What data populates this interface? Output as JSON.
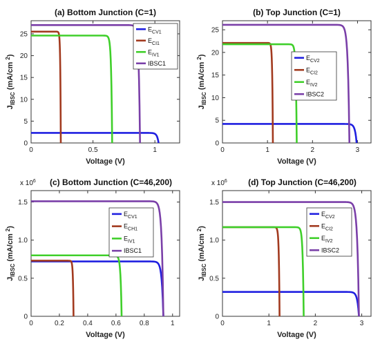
{
  "chart_data": [
    {
      "type": "line",
      "title": "(a) Bottom Junction (C=1)",
      "xlabel": "Voltage (V)",
      "ylabel": "J_IBSC (mA/cm²)",
      "ylabel_parts": {
        "main": "J",
        "sub": "IBSC",
        "units": "(mA/cm",
        "sup": "2",
        "close": ")"
      },
      "xlim": [
        0,
        1.2
      ],
      "ylim": [
        0,
        28
      ],
      "xticks": [
        0,
        0.5,
        1
      ],
      "xtick_labels": [
        "0",
        "0.5",
        "1"
      ],
      "yticks": [
        0,
        5,
        10,
        15,
        20,
        25
      ],
      "ytick_labels": [
        "0",
        "5",
        "10",
        "15",
        "20",
        "25"
      ],
      "legend_position": "top-right",
      "series": [
        {
          "name": "E_CV1",
          "label_main": "E",
          "label_sub": "CV1",
          "color": "#1f1fe0",
          "jsc": 2.3,
          "voc": 1.03
        },
        {
          "name": "E_CI1",
          "label_main": "E",
          "label_sub": "CI1",
          "color": "#a23a1f",
          "jsc": 25.5,
          "voc": 0.24
        },
        {
          "name": "E_IV1",
          "label_main": "E",
          "label_sub": "IV1",
          "color": "#3fcf2a",
          "jsc": 24.6,
          "voc": 0.655
        },
        {
          "name": "IBSC1",
          "label_main": "IBSC1",
          "label_sub": "",
          "color": "#7a3fa8",
          "jsc": 27.0,
          "voc": 0.88
        }
      ]
    },
    {
      "type": "line",
      "title": "(b) Top Junction (C=1)",
      "xlabel": "Voltage (V)",
      "ylabel": "J_IBSC (mA/cm²)",
      "ylabel_parts": {
        "main": "J",
        "sub": "IBSC",
        "units": "(mA/cm",
        "sup": "2",
        "close": ")"
      },
      "xlim": [
        0,
        3.3
      ],
      "ylim": [
        0,
        27
      ],
      "xticks": [
        0,
        1,
        2,
        3
      ],
      "xtick_labels": [
        "0",
        "1",
        "2",
        "3"
      ],
      "yticks": [
        0,
        5,
        10,
        15,
        20,
        25
      ],
      "ytick_labels": [
        "0",
        "5",
        "10",
        "15",
        "20",
        "25"
      ],
      "legend_position": "center-right",
      "series": [
        {
          "name": "E_CV2",
          "label_main": "E",
          "label_sub": "CV2",
          "color": "#1f1fe0",
          "jsc": 4.2,
          "voc": 2.98
        },
        {
          "name": "E_CI2",
          "label_main": "E",
          "label_sub": "CI2",
          "color": "#a23a1f",
          "jsc": 22.1,
          "voc": 1.12
        },
        {
          "name": "E_IV2",
          "label_main": "E",
          "label_sub": "IV2",
          "color": "#3fcf2a",
          "jsc": 21.8,
          "voc": 1.65
        },
        {
          "name": "IBSC2",
          "label_main": "IBSC2",
          "label_sub": "",
          "color": "#7a3fa8",
          "jsc": 26.1,
          "voc": 2.82
        }
      ]
    },
    {
      "type": "line",
      "title": "(c) Bottom Junction (C=46,200)",
      "scale_label": {
        "main": "x 10",
        "sup": "6"
      },
      "xlabel": "Voltage (V)",
      "ylabel": "J_IBSC (mA/cm²)",
      "ylabel_parts": {
        "main": "J",
        "sub": "IBSC",
        "units": "(mA/cm",
        "sup": "2",
        "close": ")"
      },
      "xlim": [
        0,
        1.05
      ],
      "ylim": [
        0,
        1.65
      ],
      "xticks": [
        0,
        0.2,
        0.4,
        0.6,
        0.8,
        1
      ],
      "xtick_labels": [
        "0",
        "0.2",
        "0.4",
        "0.6",
        "0.8",
        "1"
      ],
      "yticks": [
        0,
        0.5,
        1,
        1.5
      ],
      "ytick_labels": [
        "0",
        "0.5",
        "1.0",
        "1.5"
      ],
      "legend_position": "top-right",
      "series": [
        {
          "name": "E_CV1",
          "label_main": "E",
          "label_sub": "CV1",
          "color": "#1f1fe0",
          "jsc": 0.72,
          "voc": 0.935
        },
        {
          "name": "E_CH1",
          "label_main": "E",
          "label_sub": "CH1",
          "color": "#a23a1f",
          "jsc": 0.73,
          "voc": 0.3
        },
        {
          "name": "E_IV1",
          "label_main": "E",
          "label_sub": "IV1",
          "color": "#3fcf2a",
          "jsc": 0.8,
          "voc": 0.64
        },
        {
          "name": "IBSC1",
          "label_main": "IBSC1",
          "label_sub": "",
          "color": "#7a3fa8",
          "jsc": 1.51,
          "voc": 0.935
        }
      ]
    },
    {
      "type": "line",
      "title": "(d) Top Junction (C=46,200)",
      "scale_label": {
        "main": "x 10",
        "sup": "6"
      },
      "xlabel": "Voltage (V)",
      "ylabel": "J_IBSC (mA/cm²)",
      "ylabel_parts": {
        "main": "J",
        "sub": "IBSC",
        "units": "(mA/cm",
        "sup": "2",
        "close": ")"
      },
      "xlim": [
        0,
        3.2
      ],
      "ylim": [
        0,
        1.65
      ],
      "xticks": [
        0,
        1,
        2,
        3
      ],
      "xtick_labels": [
        "0",
        "1",
        "2",
        "3"
      ],
      "yticks": [
        0,
        0.5,
        1,
        1.5
      ],
      "ytick_labels": [
        "0",
        "0.5",
        "1.0",
        "1.5"
      ],
      "legend_position": "top-right",
      "series": [
        {
          "name": "E_CV2",
          "label_main": "E",
          "label_sub": "CV2",
          "color": "#1f1fe0",
          "jsc": 0.32,
          "voc": 2.94
        },
        {
          "name": "E_CI2",
          "label_main": "E",
          "label_sub": "CI2",
          "color": "#a23a1f",
          "jsc": 1.17,
          "voc": 1.23
        },
        {
          "name": "E_IV2",
          "label_main": "E",
          "label_sub": "IV2",
          "color": "#3fcf2a",
          "jsc": 1.17,
          "voc": 1.75
        },
        {
          "name": "IBSC2",
          "label_main": "IBSC2",
          "label_sub": "",
          "color": "#7a3fa8",
          "jsc": 1.5,
          "voc": 2.94
        }
      ]
    }
  ]
}
